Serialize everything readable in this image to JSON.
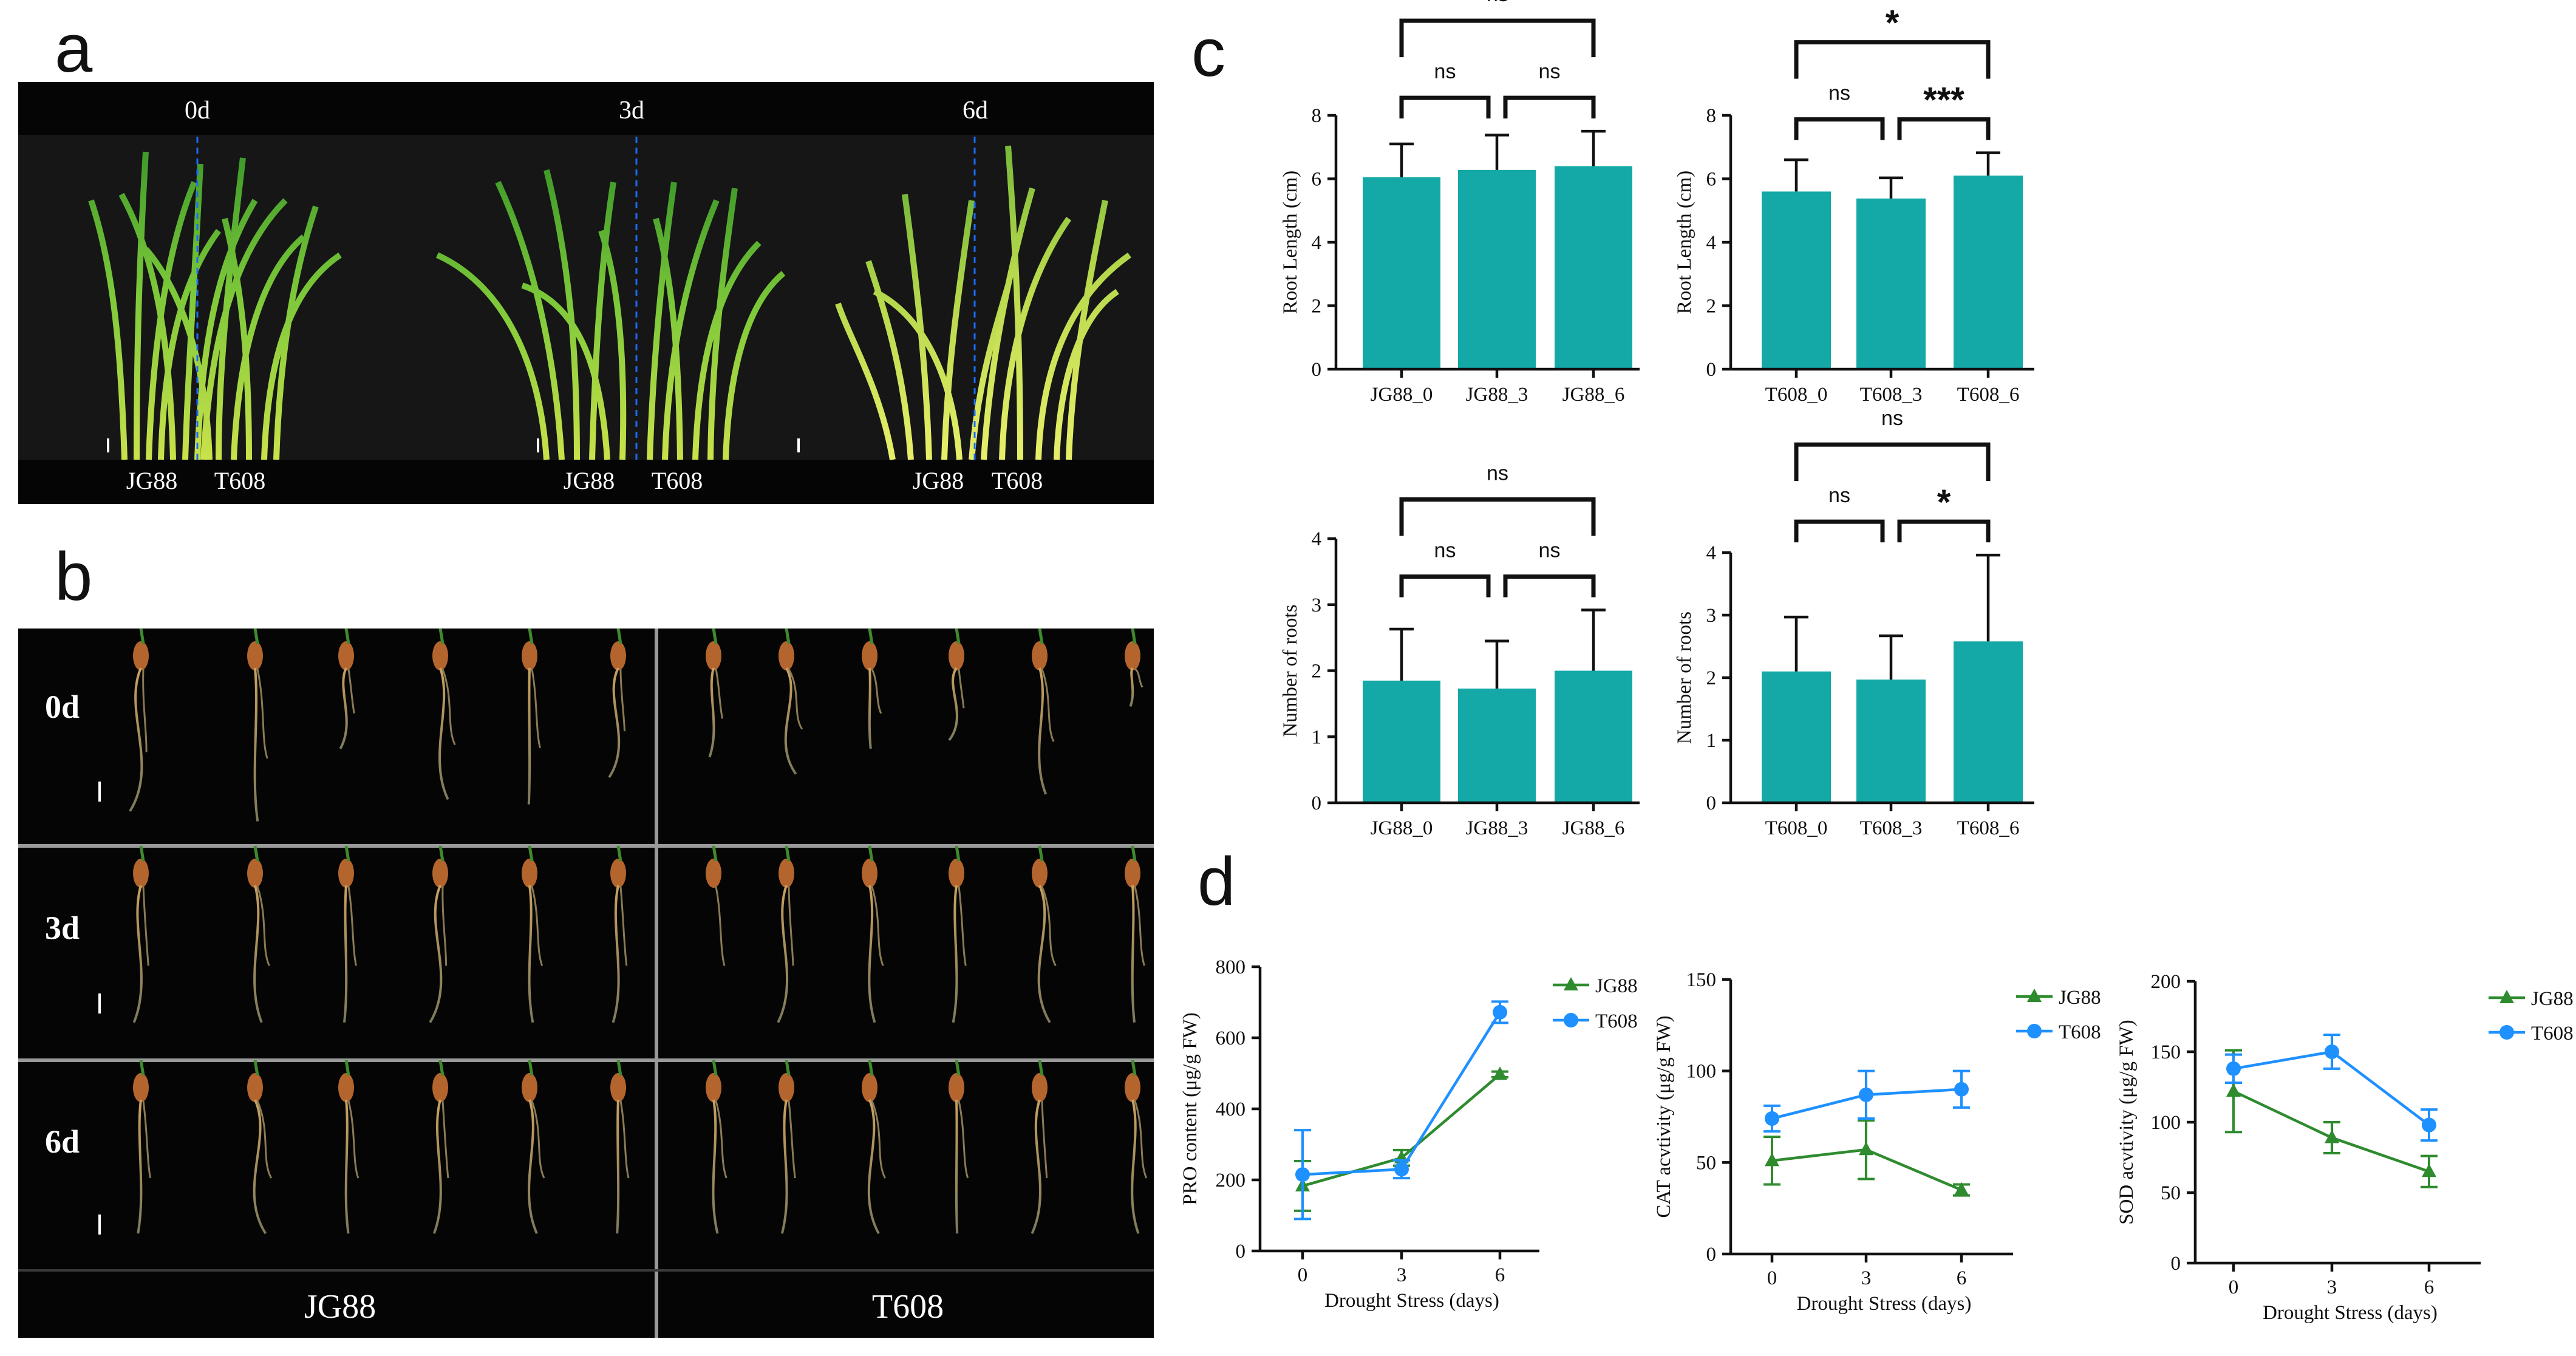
{
  "panels": {
    "a": "a",
    "b": "b",
    "c": "c",
    "d": "d"
  },
  "panel_a": {
    "days": [
      "0d",
      "3d",
      "6d"
    ],
    "cultivars": [
      "JG88",
      "T608"
    ]
  },
  "panel_b": {
    "rows": [
      "0d",
      "3d",
      "6d"
    ],
    "columns": [
      "JG88",
      "T608"
    ]
  },
  "colors": {
    "bar": "#14a8a6",
    "jg88": "#2e8b2e",
    "t608": "#1e90ff",
    "sky": "#0a0a0a"
  },
  "chart_data": [
    {
      "id": "c1",
      "type": "bar",
      "categories": [
        "JG88_0",
        "JG88_3",
        "JG88_6"
      ],
      "values": [
        6.05,
        6.28,
        6.4
      ],
      "errors": [
        1.05,
        1.1,
        1.1
      ],
      "ylabel": "Root Length (cm)",
      "ylim": [
        0,
        8
      ],
      "yticks": [
        0,
        2,
        4,
        6,
        8
      ],
      "comparisons": [
        {
          "from": 0,
          "to": 1,
          "label": "ns",
          "level": 0
        },
        {
          "from": 1,
          "to": 2,
          "label": "ns",
          "level": 0
        },
        {
          "from": 0,
          "to": 2,
          "label": "ns",
          "level": 1
        }
      ]
    },
    {
      "id": "c2",
      "type": "bar",
      "categories": [
        "T608_0",
        "T608_3",
        "T608_6"
      ],
      "values": [
        5.6,
        5.38,
        6.1
      ],
      "errors": [
        1.0,
        0.65,
        0.72
      ],
      "ylabel": "Root Length (cm)",
      "ylim": [
        0,
        8
      ],
      "yticks": [
        0,
        2,
        4,
        6,
        8
      ],
      "comparisons": [
        {
          "from": 0,
          "to": 1,
          "label": "ns",
          "level": 0
        },
        {
          "from": 1,
          "to": 2,
          "label": "***",
          "level": 0
        },
        {
          "from": 0,
          "to": 2,
          "label": "*",
          "level": 1
        }
      ]
    },
    {
      "id": "c3",
      "type": "bar",
      "categories": [
        "JG88_0",
        "JG88_3",
        "JG88_6"
      ],
      "values": [
        1.85,
        1.73,
        2.0
      ],
      "errors": [
        0.78,
        0.72,
        0.92
      ],
      "ylabel": "Number of roots",
      "ylim": [
        0,
        4
      ],
      "yticks": [
        0,
        1,
        2,
        3,
        4
      ],
      "comparisons": [
        {
          "from": 0,
          "to": 1,
          "label": "ns",
          "level": 0
        },
        {
          "from": 1,
          "to": 2,
          "label": "ns",
          "level": 0
        },
        {
          "from": 0,
          "to": 2,
          "label": "ns",
          "level": 1
        }
      ]
    },
    {
      "id": "c4",
      "type": "bar",
      "categories": [
        "T608_0",
        "T608_3",
        "T608_6"
      ],
      "values": [
        2.1,
        1.97,
        2.58
      ],
      "errors": [
        0.87,
        0.7,
        1.38
      ],
      "ylabel": "Number of roots",
      "ylim": [
        0,
        4
      ],
      "yticks": [
        0,
        1,
        2,
        3,
        4
      ],
      "comparisons": [
        {
          "from": 0,
          "to": 1,
          "label": "ns",
          "level": 0
        },
        {
          "from": 1,
          "to": 2,
          "label": "*",
          "level": 0
        },
        {
          "from": 0,
          "to": 2,
          "label": "ns",
          "level": 1
        }
      ]
    },
    {
      "id": "d1",
      "type": "line",
      "x": [
        0,
        3,
        6
      ],
      "xlabel": "Drought Stress (days)",
      "ylabel": "PRO content (μg/g FW)",
      "ylim": [
        0,
        800
      ],
      "yticks": [
        0,
        200,
        400,
        600,
        800
      ],
      "series": [
        {
          "name": "JG88",
          "marker": "triangle",
          "values": [
            183,
            262,
            497
          ],
          "errors": [
            70,
            22,
            8
          ]
        },
        {
          "name": "T608",
          "marker": "circle",
          "values": [
            215,
            230,
            672
          ],
          "errors": [
            125,
            25,
            30
          ]
        }
      ]
    },
    {
      "id": "d2",
      "type": "line",
      "x": [
        0,
        3,
        6
      ],
      "xlabel": "Drought Stress (days)",
      "ylabel": "CAT acvtivity (μg/g FW)",
      "ylim": [
        0,
        150
      ],
      "yticks": [
        0,
        50,
        100,
        150
      ],
      "series": [
        {
          "name": "JG88",
          "marker": "triangle",
          "values": [
            51,
            57,
            35
          ],
          "errors": [
            13,
            16,
            3
          ]
        },
        {
          "name": "T608",
          "marker": "circle",
          "values": [
            74,
            87,
            90
          ],
          "errors": [
            7,
            13,
            10
          ]
        }
      ]
    },
    {
      "id": "d3",
      "type": "line",
      "x": [
        0,
        3,
        6
      ],
      "xlabel": "Drought Stress (days)",
      "ylabel": "SOD acvtivity (μg/g FW)",
      "ylim": [
        0,
        200
      ],
      "yticks": [
        0,
        50,
        100,
        150,
        200
      ],
      "series": [
        {
          "name": "JG88",
          "marker": "triangle",
          "values": [
            122,
            89,
            65
          ],
          "errors": [
            29,
            11,
            11
          ]
        },
        {
          "name": "T608",
          "marker": "circle",
          "values": [
            138,
            150,
            98
          ],
          "errors": [
            10,
            12,
            11
          ]
        }
      ]
    }
  ]
}
